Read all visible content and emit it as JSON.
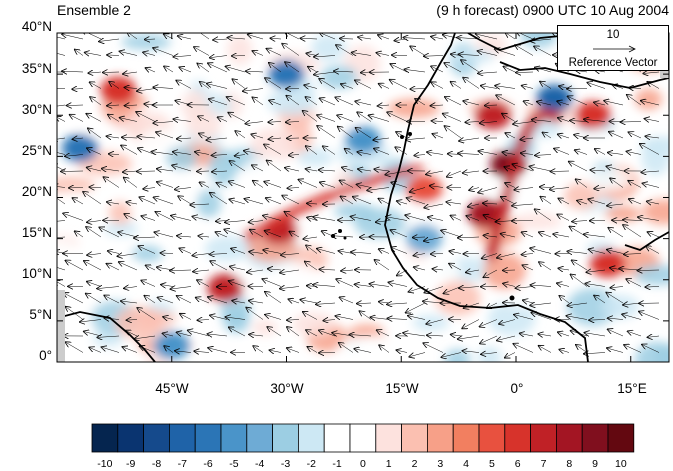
{
  "title": {
    "left": "Ensemble 2",
    "right": "(9 h forecast) 0900 UTC 10 Aug 2004"
  },
  "axes": {
    "y_ticks": [
      "40°N",
      "35°N",
      "30°N",
      "25°N",
      "20°N",
      "15°N",
      "10°N",
      "5°N",
      "0°"
    ],
    "x_ticks": [
      "45°W",
      "30°W",
      "15°W",
      "0°",
      "15°E"
    ]
  },
  "reference_vector": {
    "magnitude": "10",
    "label": "Reference Vector"
  },
  "colorbar": {
    "labels": [
      "-10",
      "-9",
      "-8",
      "-7",
      "-6",
      "-5",
      "-4",
      "-3",
      "-2",
      "-1",
      "0",
      "1",
      "2",
      "3",
      "4",
      "5",
      "6",
      "7",
      "8",
      "9",
      "10"
    ],
    "colors": [
      "#05254f",
      "#0a3470",
      "#154a8c",
      "#1f63a8",
      "#2b75b6",
      "#4a94c9",
      "#6eabd5",
      "#9ccee3",
      "#cde8f4",
      "#ffffff",
      "#ffffff",
      "#fde2de",
      "#fbc0b1",
      "#f7a088",
      "#f27f60",
      "#e8513f",
      "#d7332b",
      "#c02126",
      "#a31523",
      "#800f1e",
      "#630810"
    ]
  },
  "chart_data": {
    "type": "heatmap",
    "title": "",
    "lon_range": [
      -60,
      20
    ],
    "lat_range": [
      0,
      40
    ],
    "color_range": [
      -10,
      10
    ],
    "features": [
      {
        "kind": "positive",
        "lon": -52,
        "lat": 33,
        "value": 6
      },
      {
        "kind": "positive",
        "lon": -31,
        "lat": 16,
        "value": 7
      },
      {
        "kind": "positive",
        "lon": -38,
        "lat": 9,
        "value": 7
      },
      {
        "kind": "positive",
        "lon": -12,
        "lat": 21,
        "value": 5
      },
      {
        "kind": "positive",
        "lon": -1,
        "lat": 24,
        "value": 9
      },
      {
        "kind": "positive",
        "lon": -4,
        "lat": 18,
        "value": 8
      },
      {
        "kind": "positive",
        "lon": -3,
        "lat": 30,
        "value": 7
      },
      {
        "kind": "positive",
        "lon": 12,
        "lat": 12,
        "value": 6
      },
      {
        "kind": "positive",
        "lon": 10,
        "lat": 30,
        "value": 6
      },
      {
        "kind": "negative",
        "lon": -57,
        "lat": 26,
        "value": -6
      },
      {
        "kind": "negative",
        "lon": -30,
        "lat": 35,
        "value": -6
      },
      {
        "kind": "negative",
        "lon": -20,
        "lat": 27,
        "value": -5
      },
      {
        "kind": "negative",
        "lon": 5,
        "lat": 32,
        "value": -7
      },
      {
        "kind": "negative",
        "lon": -45,
        "lat": 2,
        "value": -5
      },
      {
        "kind": "negative",
        "lon": -12,
        "lat": 15,
        "value": -4
      }
    ]
  }
}
